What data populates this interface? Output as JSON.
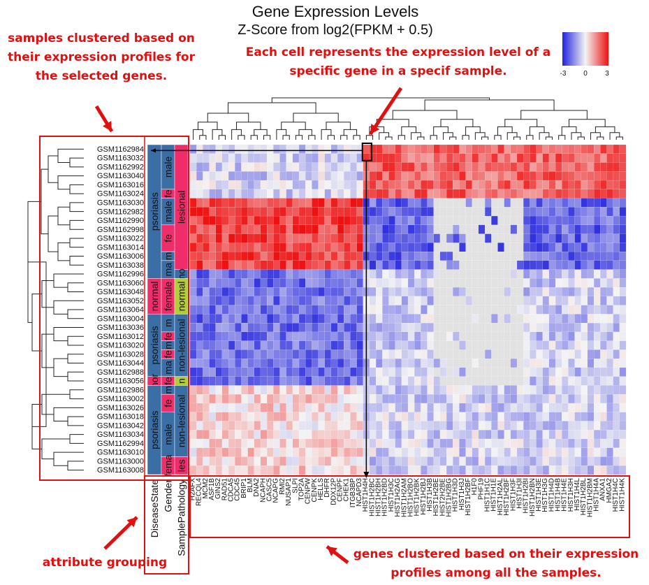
{
  "header": {
    "title": "Gene Expression Levels",
    "subtitle": "Z-Score from log2(FPKM + 0.5)"
  },
  "annotations": {
    "samples_note": "samples clustered based on their expression profiles for the selected genes.",
    "cell_note": "Each cell represents the expression level of a specific gene in a specif sample.",
    "attribute_note": "attribute grouping",
    "genes_note": "genes clustered based on their expression profiles among all the samples."
  },
  "colors": {
    "low": "#2222dd",
    "mid": "#f4f4f4",
    "high": "#ee1111",
    "missing": "#e2e2e2",
    "annotation": "#e01010",
    "category_blue": "#3b6ea5",
    "category_pink": "#ee2d6a",
    "category_green": "#b5cc3a"
  },
  "chart_data": {
    "type": "heatmap",
    "title": "Gene Expression Levels",
    "subtitle": "Z-Score from log2(FPKM + 0.5)",
    "color_scale": {
      "min": -3,
      "mid": 0,
      "max": 3,
      "tick_labels": [
        "-3",
        "0",
        "3"
      ]
    },
    "rows": [
      "GSM1162984",
      "GSM1163032",
      "GSM1162992",
      "GSM1163040",
      "GSM1163016",
      "GSM1163024",
      "GSM1163030",
      "GSM1162982",
      "GSM1162990",
      "GSM1162998",
      "GSM1163022",
      "GSM1163014",
      "GSM1163006",
      "GSM1163038",
      "GSM1162996",
      "GSM1163060",
      "GSM1163048",
      "GSM1163052",
      "GSM1163064",
      "GSM1163004",
      "GSM1163036",
      "GSM1163012",
      "GSM1163020",
      "GSM1163028",
      "GSM1163044",
      "GSM1162988",
      "GSM1163056",
      "GSM1162986",
      "GSM1163002",
      "GSM1163026",
      "GSM1163018",
      "GSM1163042",
      "GSM1163034",
      "GSM1162994",
      "GSM1163010",
      "GSM1163000",
      "GSM1163008"
    ],
    "columns": [
      "H2AFX",
      "RECQL4",
      "MCM2",
      "ASF1B",
      "GINS2",
      "RAD51",
      "CDCA5",
      "CDC45",
      "BRIP1",
      "BLM",
      "DNA2",
      "NCAPH",
      "CASC5",
      "NCAPG",
      "RMI2",
      "NUSAP1",
      "SLPI",
      "TOP2A",
      "CENPW",
      "CENPK",
      "HELLS",
      "DHFR",
      "DDX12P",
      "CENPF",
      "CHEK1",
      "ITGB3BP",
      "NCAPD3",
      "HIST1H4H",
      "HIST1H2BC",
      "HIST1H2BH",
      "HIST1H2BD",
      "HIST1H3C",
      "HIST1H2AG",
      "HIST1H2AM",
      "HIST1H2BO",
      "HIST1H2BK",
      "HIST1H2BJ",
      "HIST1H3B",
      "HIST1H2BE",
      "HIST2H2BE",
      "HIST1H2BG",
      "HIST1H3D",
      "HIST1H3J",
      "HIST1H2BF",
      "H1F0",
      "PHF19",
      "HIST1H1C",
      "HIST1H1E",
      "HIST1H2AL",
      "HIST1H2BF",
      "HIST1H3F",
      "HIST1H3I",
      "HIST1H2BI",
      "HIST1H2BN",
      "HIST1H3E",
      "HIST1H3G",
      "HIST1H4D",
      "HIST1H4B",
      "HIST1H4E",
      "HIST1H3H",
      "HIST1H4L",
      "HIST1H2BL",
      "HIST1H2BM",
      "HIST1H4A",
      "ANXA1",
      "HMGA2",
      "HIST1H4C",
      "HIST1H4K"
    ],
    "attribute_labels": [
      "DiseaseState",
      "Gender",
      "SamplePathology"
    ],
    "attribute_values": {
      "DiseaseState": [
        "psoriasis",
        "normal"
      ],
      "Gender": [
        "male",
        "female"
      ],
      "SamplePathology": [
        "lesional",
        "non-lesional",
        "normal"
      ]
    },
    "attribute_tracks": [
      {
        "name": "DiseaseState",
        "segments": [
          {
            "label": "psoriasis",
            "from": 0,
            "to": 15,
            "color": "#3b6ea5"
          },
          {
            "label": "normal",
            "from": 15,
            "to": 19,
            "color": "#ee2d6a"
          },
          {
            "label": "psoriasis",
            "from": 19,
            "to": 26,
            "color": "#3b6ea5"
          },
          {
            "label": "nor",
            "from": 26,
            "to": 27,
            "color": "#ee2d6a"
          },
          {
            "label": "psoriasis",
            "from": 27,
            "to": 37,
            "color": "#3b6ea5"
          }
        ]
      },
      {
        "name": "Gender",
        "segments": [
          {
            "label": "male",
            "from": 0,
            "to": 5,
            "color": "#3b6ea5"
          },
          {
            "label": "fe",
            "from": 5,
            "to": 6,
            "color": "#ee2d6a"
          },
          {
            "label": "male",
            "from": 6,
            "to": 9,
            "color": "#3b6ea5"
          },
          {
            "label": "fe",
            "from": 9,
            "to": 12,
            "color": "#ee2d6a"
          },
          {
            "label": "m",
            "from": 12,
            "to": 13,
            "color": "#3b6ea5"
          },
          {
            "label": "ma",
            "from": 13,
            "to": 15,
            "color": "#3b6ea5"
          },
          {
            "label": "female",
            "from": 15,
            "to": 19,
            "color": "#ee2d6a"
          },
          {
            "label": "m",
            "from": 19,
            "to": 21,
            "color": "#3b6ea5"
          },
          {
            "label": "fe",
            "from": 21,
            "to": 22,
            "color": "#ee2d6a"
          },
          {
            "label": "m",
            "from": 22,
            "to": 23,
            "color": "#3b6ea5"
          },
          {
            "label": "fe",
            "from": 23,
            "to": 24,
            "color": "#ee2d6a"
          },
          {
            "label": "ma",
            "from": 24,
            "to": 26,
            "color": "#3b6ea5"
          },
          {
            "label": "fe",
            "from": 26,
            "to": 27,
            "color": "#ee2d6a"
          },
          {
            "label": "m",
            "from": 27,
            "to": 28,
            "color": "#3b6ea5"
          },
          {
            "label": "fe",
            "from": 28,
            "to": 30,
            "color": "#ee2d6a"
          },
          {
            "label": "male",
            "from": 30,
            "to": 35,
            "color": "#3b6ea5"
          },
          {
            "label": "fema",
            "from": 35,
            "to": 37,
            "color": "#ee2d6a"
          }
        ]
      },
      {
        "name": "SamplePathology",
        "segments": [
          {
            "label": "lesional",
            "from": 0,
            "to": 14,
            "color": "#ee2d6a"
          },
          {
            "label": "no",
            "from": 14,
            "to": 15,
            "color": "#3b6ea5"
          },
          {
            "label": "normal",
            "from": 15,
            "to": 19,
            "color": "#b5cc3a"
          },
          {
            "label": "non-lesional",
            "from": 19,
            "to": 26,
            "color": "#3b6ea5"
          },
          {
            "label": "n",
            "from": 26,
            "to": 27,
            "color": "#b5cc3a"
          },
          {
            "label": "non-lesional",
            "from": 27,
            "to": 35,
            "color": "#3b6ea5"
          },
          {
            "label": "les",
            "from": 35,
            "to": 37,
            "color": "#ee2d6a"
          }
        ]
      }
    ],
    "highlighted_cell": {
      "row": "GSM1162984",
      "column": "HIST1H4H"
    },
    "row_groups": [
      {
        "from": 0,
        "to": 6,
        "left_cols": -0.5,
        "right_cols": 1.9
      },
      {
        "from": 6,
        "to": 14,
        "left_cols": 2.4,
        "right_cols": -2.0
      },
      {
        "from": 14,
        "to": 27,
        "left_cols": -1.9,
        "right_cols": -0.6
      },
      {
        "from": 27,
        "to": 37,
        "left_cols": 0.4,
        "right_cols": -0.5
      }
    ],
    "gene_split_index": 27,
    "missing_block": {
      "row_from": 6,
      "row_to": 27,
      "col_from": 38,
      "col_to": 52
    }
  }
}
